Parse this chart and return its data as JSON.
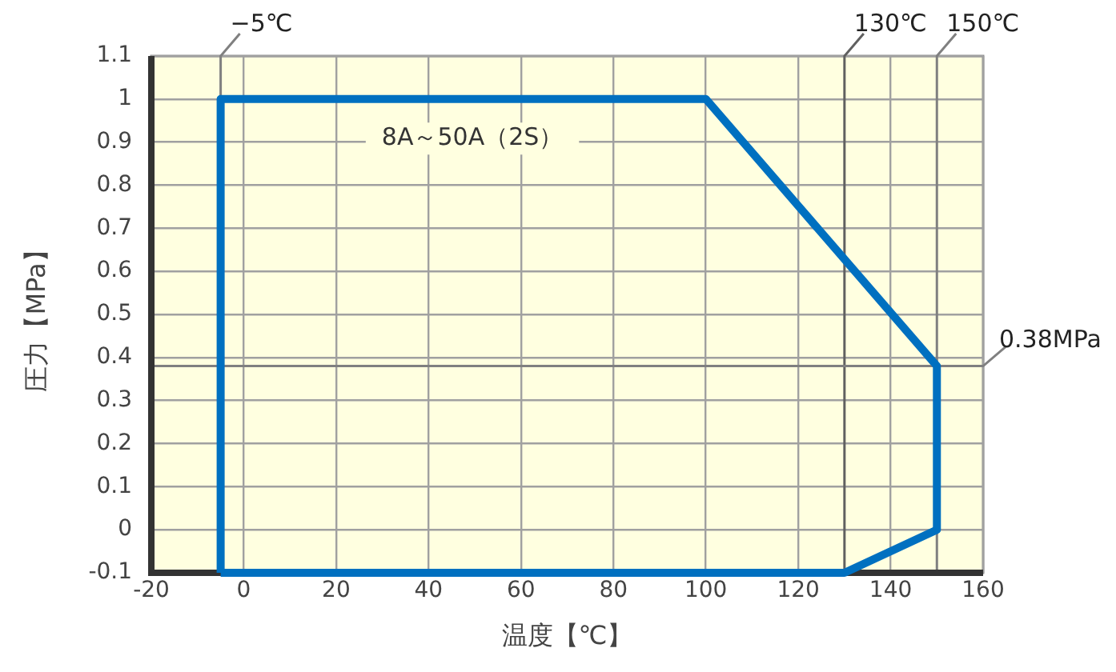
{
  "chart_data": {
    "type": "line",
    "xlabel": "温度【℃】",
    "ylabel": "圧力【MPa】",
    "series": [
      {
        "color": "#0070c0",
        "x": [
          -5,
          -5,
          100,
          150,
          150
        ],
        "values": [
          -0.1,
          1,
          1,
          0.38,
          0
        ]
      },
      {
        "color": "#0070c0",
        "x": [
          -5,
          130,
          150
        ],
        "values": [
          -0.1,
          -0.1,
          0
        ]
      }
    ],
    "xlim": [
      -20,
      160
    ],
    "xticks": [
      -20,
      0,
      20,
      40,
      60,
      80,
      100,
      120,
      140,
      160
    ],
    "ylim": [
      -0.1,
      1.1
    ],
    "yticks": [
      -0.1,
      0,
      0.1,
      0.2,
      0.3,
      0.4,
      0.5,
      0.6,
      0.7,
      0.8,
      0.9,
      1,
      1.1
    ],
    "grid": true,
    "legend": false,
    "marker": "none",
    "line_style": "solid",
    "ref_lines": [
      {
        "axis": "x",
        "value": -5,
        "label": "−5℃",
        "color": "#808080"
      },
      {
        "axis": "x",
        "value": 130,
        "label": "130℃",
        "color": "#606060"
      },
      {
        "axis": "x",
        "value": 150,
        "label": "150℃",
        "color": "#808080"
      },
      {
        "axis": "y",
        "value": 0.38,
        "label": "0.38MPa",
        "color": "#808080"
      }
    ],
    "annotations": [
      "8A～50A（2S）"
    ]
  }
}
